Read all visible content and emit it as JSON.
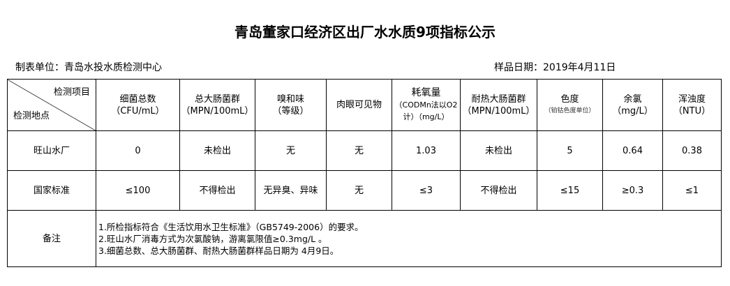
{
  "title": "青岛董家口经济区出厂水水质9项指标公示",
  "unit_label": "制表单位：青岛水投水质检测中心",
  "date_label": "样品日期：2019年4月11日",
  "corner": {
    "top": "检测项目",
    "bottom": "检测地点"
  },
  "columns": [
    {
      "name": "细菌总数",
      "unit": "（CFU/mL）"
    },
    {
      "name": "总大肠菌群",
      "unit": "（MPN/100mL）"
    },
    {
      "name": "嗅和味",
      "unit": "（等级）"
    },
    {
      "name": "肉眼可见物",
      "unit": ""
    },
    {
      "name": "耗氧量",
      "unit": "（CODMn法以O2计）（mg/L）"
    },
    {
      "name": "耐热大肠菌群",
      "unit": "（MPN/100mL）"
    },
    {
      "name": "色度",
      "unit": "（铂钴色度单位）"
    },
    {
      "name": "余氯",
      "unit": "（mg/L）"
    },
    {
      "name": "浑浊度",
      "unit": "（NTU）"
    }
  ],
  "rows": [
    {
      "label": "旺山水厂",
      "values": [
        "0",
        "未检出",
        "无",
        "无",
        "1.03",
        "未检出",
        "5",
        "0.64",
        "0.38"
      ]
    },
    {
      "label": "国家标准",
      "values": [
        "≤100",
        "不得检出",
        "无异臭、异味",
        "无",
        "≤3",
        "不得检出",
        "≤15",
        "≥0.3",
        "≤1"
      ]
    }
  ],
  "notes": {
    "label": "备注",
    "lines": [
      "1.所检指标符合《生活饮用水卫生标准》（GB5749-2006）的要求。",
      "2.旺山水厂消毒方式为次氯酸钠，游离氯限值≥0.3mg/L 。",
      "3.细菌总数、总大肠菌群、耐热大肠菌群样品日期为 4月9日。"
    ]
  }
}
